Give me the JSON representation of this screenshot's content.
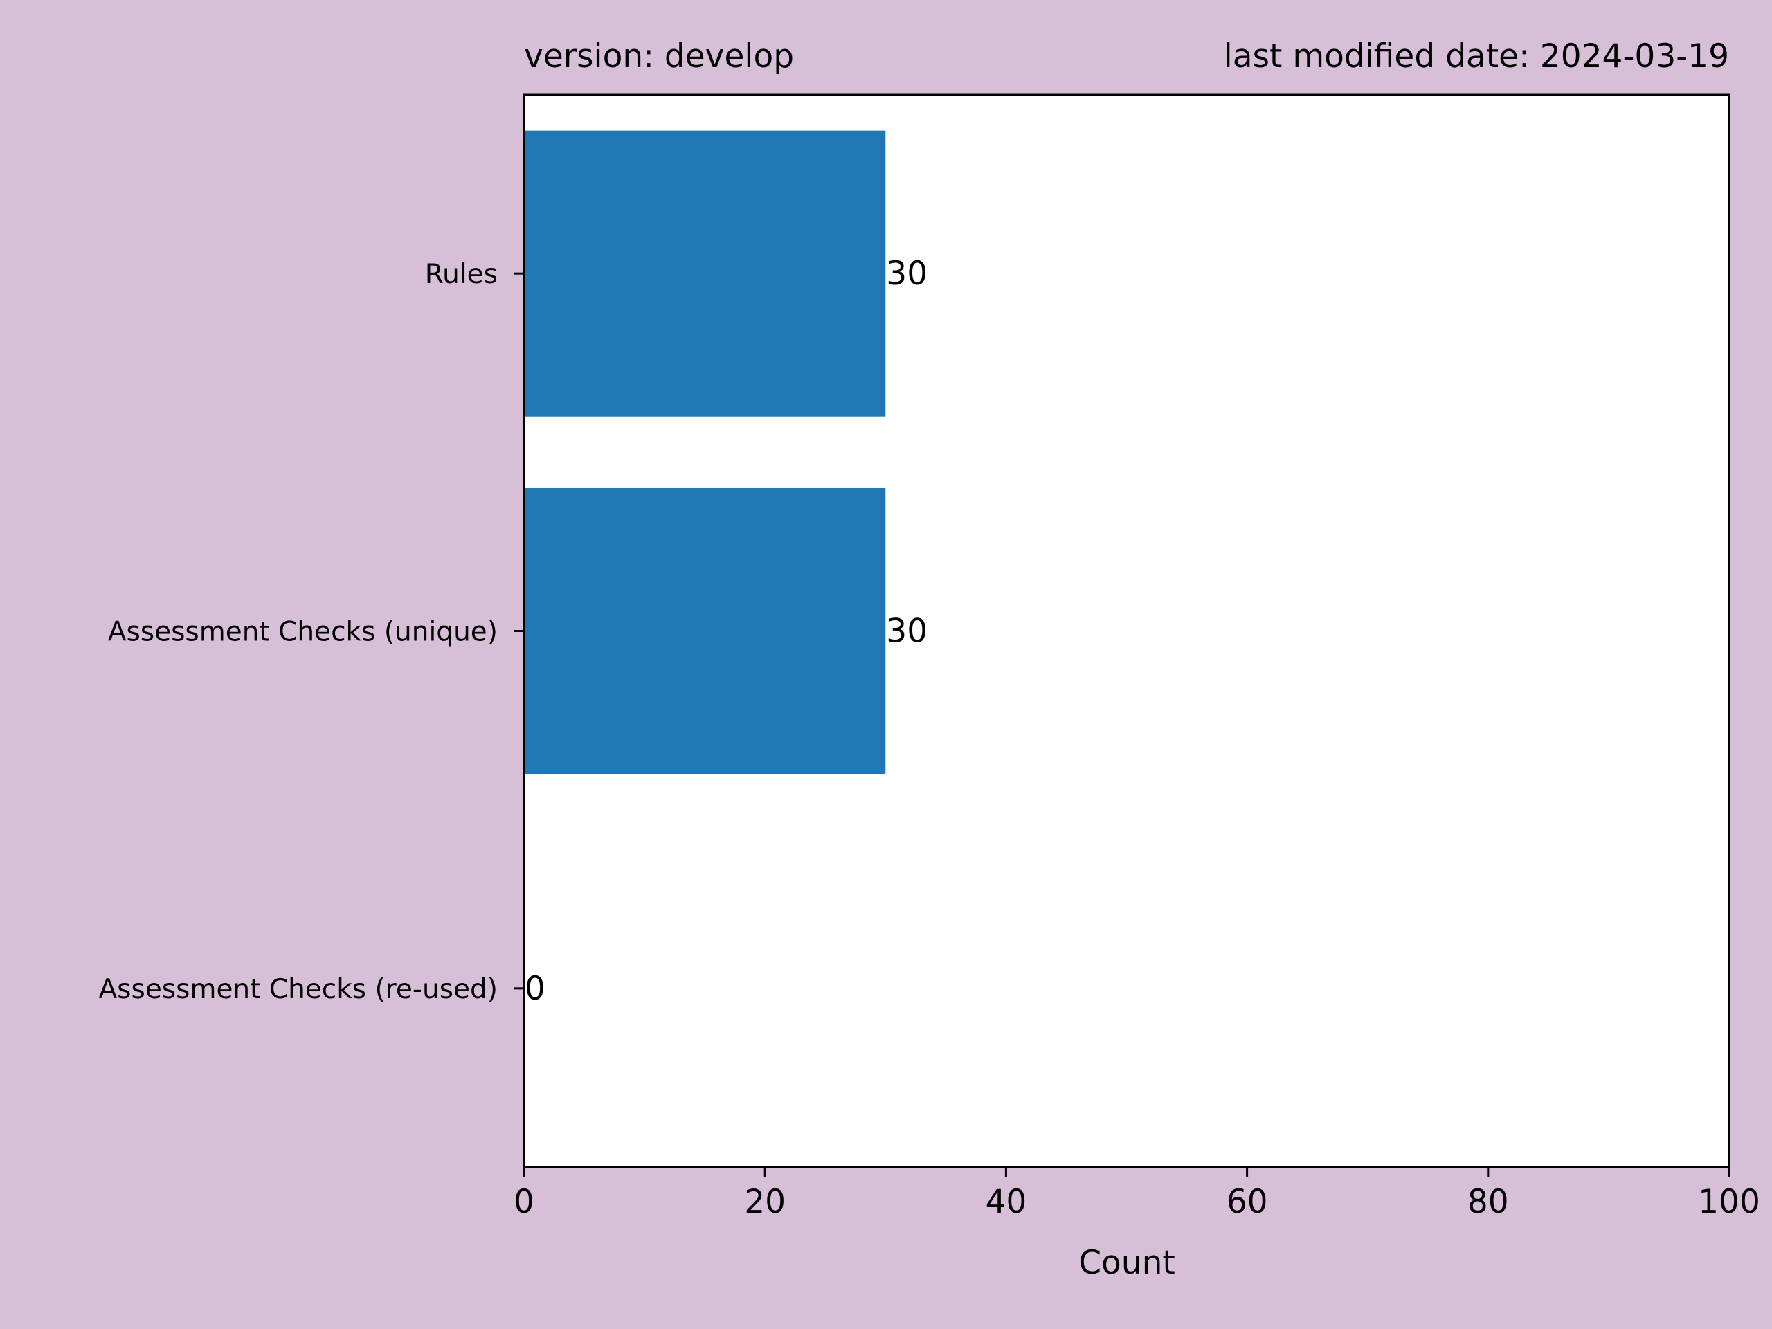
{
  "header": {
    "left": "version: develop",
    "right": "last modified date: 2024-03-19"
  },
  "colors": {
    "figure_background": "#d8bfd8",
    "plot_background": "#ffffff",
    "bar": "#1f77b4"
  },
  "chart_data": {
    "type": "bar",
    "orientation": "horizontal",
    "categories": [
      "Rules",
      "Assessment Checks (unique)",
      "Assessment Checks (re-used)"
    ],
    "values": [
      30,
      30,
      0
    ],
    "data_labels": [
      "30",
      "30",
      "0"
    ],
    "xlabel": "Count",
    "ylabel": "",
    "xlim": [
      0,
      100
    ],
    "xticks": [
      "0",
      "20",
      "40",
      "60",
      "80",
      "100"
    ],
    "grid": false,
    "legend": "none"
  }
}
